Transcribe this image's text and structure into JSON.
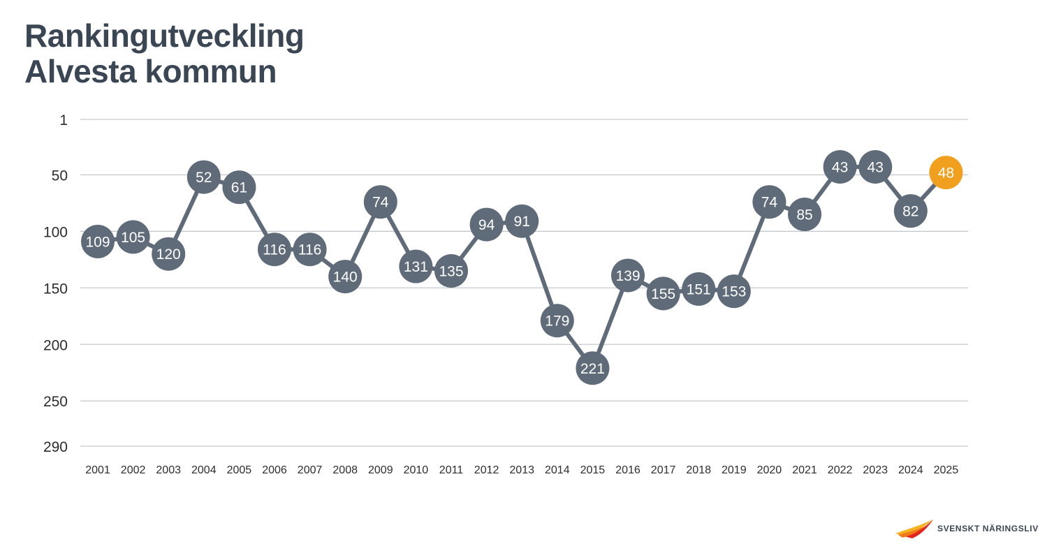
{
  "header": {
    "title_line1": "Rankingutveckling",
    "title_line2": "Alvesta kommun"
  },
  "logo": {
    "text": "SVENSKT NÄRINGSLIV",
    "icon": "bird-icon"
  },
  "colors": {
    "series": "#5f6b79",
    "highlight": "#f0a01e",
    "grid": "#c3c9cf",
    "text": "#3b4654"
  },
  "chart_data": {
    "type": "line",
    "title": "Rankingutveckling Alvesta kommun",
    "xlabel": "",
    "ylabel": "",
    "y_inverted": true,
    "ylim": [
      1,
      290
    ],
    "yticks": [
      1,
      50,
      100,
      150,
      200,
      250,
      290
    ],
    "grid": true,
    "legend": "none",
    "categories": [
      "2001",
      "2002",
      "2003",
      "2004",
      "2005",
      "2006",
      "2007",
      "2008",
      "2009",
      "2010",
      "2011",
      "2012",
      "2013",
      "2014",
      "2015",
      "2016",
      "2017",
      "2018",
      "2019",
      "2020",
      "2021",
      "2022",
      "2023",
      "2024",
      "2025"
    ],
    "values": [
      109,
      105,
      120,
      52,
      61,
      116,
      116,
      140,
      74,
      131,
      135,
      94,
      91,
      179,
      221,
      139,
      155,
      151,
      153,
      74,
      85,
      43,
      43,
      82,
      48
    ],
    "highlight_category": "2025"
  }
}
